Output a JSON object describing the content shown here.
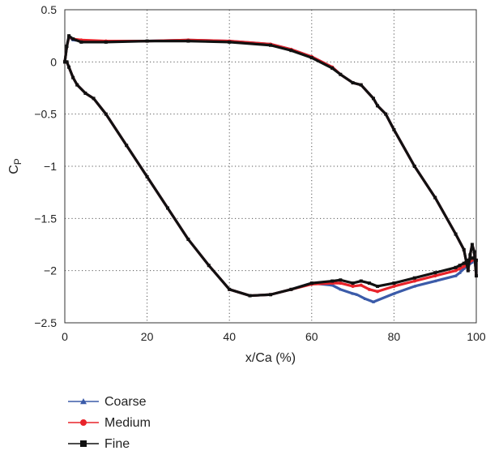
{
  "chart_data": {
    "type": "line",
    "title": "",
    "xlabel": "x/Ca (%)",
    "ylabel": "C",
    "ylabel_sub": "P",
    "xlim": [
      0,
      100
    ],
    "ylim": [
      -2.5,
      0.5
    ],
    "xticks": [
      0,
      20,
      40,
      60,
      80,
      100
    ],
    "yticks": [
      0.5,
      0,
      -0.5,
      -1,
      -1.5,
      -2,
      -2.5
    ],
    "xtick_labels": [
      "0",
      "20",
      "40",
      "60",
      "80",
      "100"
    ],
    "ytick_labels": [
      "0.5",
      "0",
      "−0.5",
      "−1",
      "−1.5",
      "−2",
      "−2.5"
    ],
    "grid": true,
    "legend_position": "bottom-left, below plot",
    "series": [
      {
        "name": "Coarse",
        "color": "#3b5ba9",
        "marker": "triangle",
        "x": [
          0,
          0.5,
          1,
          2,
          4,
          10,
          20,
          30,
          40,
          50,
          55,
          60,
          65,
          67,
          70,
          72,
          75,
          76,
          78,
          80,
          85,
          90,
          95,
          97,
          98,
          98.5,
          99,
          99.5,
          100,
          100,
          99.5,
          99,
          98,
          97,
          96,
          95,
          90,
          85,
          80,
          75,
          73,
          71,
          70,
          67,
          65,
          60,
          55,
          50,
          45,
          40,
          35,
          30,
          25,
          20,
          15,
          10,
          7,
          5,
          3,
          2,
          1,
          0.5,
          0
        ],
        "y": [
          0,
          0.15,
          0.24,
          0.21,
          0.2,
          0.2,
          0.2,
          0.21,
          0.2,
          0.17,
          0.12,
          0.05,
          -0.05,
          -0.12,
          -0.2,
          -0.22,
          -0.35,
          -0.42,
          -0.5,
          -0.65,
          -1.0,
          -1.3,
          -1.65,
          -1.8,
          -2.0,
          -1.85,
          -1.75,
          -1.82,
          -2.05,
          -1.9,
          -1.88,
          -1.92,
          -1.95,
          -1.98,
          -2.02,
          -2.05,
          -2.1,
          -2.15,
          -2.22,
          -2.3,
          -2.27,
          -2.23,
          -2.22,
          -2.18,
          -2.14,
          -2.12,
          -2.18,
          -2.23,
          -2.24,
          -2.18,
          -1.95,
          -1.7,
          -1.4,
          -1.1,
          -0.8,
          -0.5,
          -0.35,
          -0.3,
          -0.22,
          -0.15,
          -0.05,
          0.0,
          0
        ]
      },
      {
        "name": "Medium",
        "color": "#e8232a",
        "marker": "circle",
        "x": [
          0,
          0.5,
          1,
          2,
          4,
          10,
          20,
          30,
          40,
          50,
          55,
          60,
          65,
          67,
          70,
          72,
          75,
          76,
          78,
          80,
          85,
          90,
          95,
          97,
          98,
          98.5,
          99,
          99.5,
          100,
          100,
          99.5,
          99,
          98,
          97,
          96,
          95,
          90,
          85,
          80,
          76,
          74,
          72,
          70,
          67,
          65,
          60,
          55,
          50,
          45,
          40,
          35,
          30,
          25,
          20,
          15,
          10,
          7,
          5,
          3,
          2,
          1,
          0.5,
          0
        ],
        "y": [
          0,
          0.15,
          0.24,
          0.22,
          0.21,
          0.2,
          0.2,
          0.21,
          0.2,
          0.17,
          0.12,
          0.05,
          -0.05,
          -0.12,
          -0.2,
          -0.22,
          -0.35,
          -0.42,
          -0.5,
          -0.65,
          -1.0,
          -1.3,
          -1.65,
          -1.8,
          -2.0,
          -1.85,
          -1.75,
          -1.82,
          -2.05,
          -1.9,
          -1.88,
          -1.9,
          -1.93,
          -1.96,
          -1.98,
          -2.0,
          -2.05,
          -2.1,
          -2.15,
          -2.2,
          -2.18,
          -2.14,
          -2.15,
          -2.12,
          -2.12,
          -2.13,
          -2.18,
          -2.23,
          -2.24,
          -2.18,
          -1.95,
          -1.7,
          -1.4,
          -1.1,
          -0.8,
          -0.5,
          -0.35,
          -0.3,
          -0.22,
          -0.15,
          -0.05,
          0.0,
          0
        ]
      },
      {
        "name": "Fine",
        "color": "#111111",
        "marker": "square",
        "x": [
          0,
          0.5,
          1,
          2,
          4,
          10,
          20,
          30,
          40,
          50,
          55,
          60,
          65,
          67,
          70,
          72,
          75,
          76,
          78,
          80,
          85,
          90,
          95,
          97,
          98,
          98.5,
          99,
          99.5,
          100,
          100,
          99.5,
          99,
          98,
          97,
          96,
          95,
          90,
          85,
          80,
          76,
          74,
          72,
          70,
          67,
          65,
          60,
          55,
          50,
          45,
          40,
          35,
          30,
          25,
          20,
          15,
          10,
          7,
          5,
          3,
          2,
          1,
          0.5,
          0
        ],
        "y": [
          0,
          0.15,
          0.25,
          0.22,
          0.19,
          0.19,
          0.2,
          0.2,
          0.19,
          0.16,
          0.11,
          0.04,
          -0.06,
          -0.12,
          -0.2,
          -0.22,
          -0.35,
          -0.42,
          -0.5,
          -0.65,
          -1.0,
          -1.3,
          -1.65,
          -1.8,
          -2.0,
          -1.85,
          -1.75,
          -1.82,
          -2.05,
          -1.9,
          -1.88,
          -1.88,
          -1.9,
          -1.93,
          -1.95,
          -1.97,
          -2.02,
          -2.07,
          -2.12,
          -2.15,
          -2.12,
          -2.1,
          -2.12,
          -2.09,
          -2.1,
          -2.12,
          -2.18,
          -2.23,
          -2.24,
          -2.18,
          -1.95,
          -1.7,
          -1.4,
          -1.1,
          -0.8,
          -0.5,
          -0.35,
          -0.3,
          -0.22,
          -0.15,
          -0.05,
          0.0,
          0
        ]
      }
    ]
  }
}
